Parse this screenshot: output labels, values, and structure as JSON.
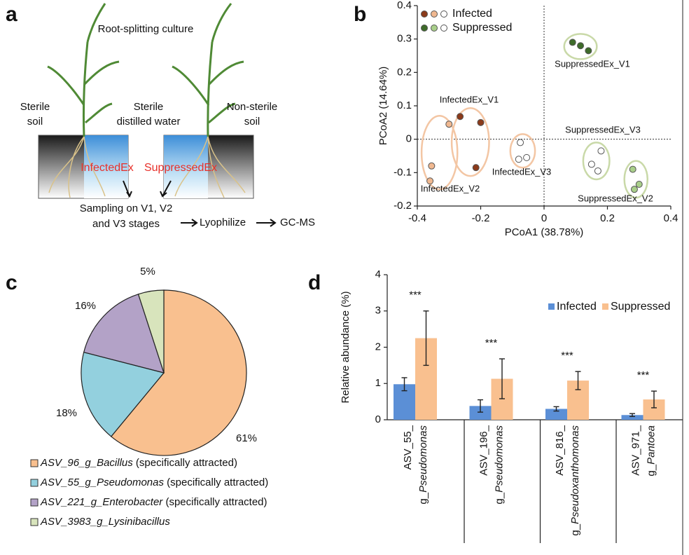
{
  "panel_labels": [
    "a",
    "b",
    "c",
    "d"
  ],
  "diagram": {
    "title": "Root-splitting culture",
    "sterile_soil": [
      "Sterile",
      "soil"
    ],
    "sterile_water": [
      "Sterile",
      "distilled water"
    ],
    "nonsterile_soil": [
      "Non-sterile",
      "soil"
    ],
    "left_pot": "InfectedEx",
    "right_pot": "SuppressedEx",
    "sampling": [
      "Sampling on V1, V2",
      "and V3 stages"
    ],
    "steps": [
      "Lyophilize",
      "GC-MS"
    ]
  },
  "chart_data": [
    {
      "type": "scatter",
      "xlabel": "PCoA1 (38.78%)",
      "ylabel": "PCoA2 (14.64%)",
      "xlim": [
        -0.4,
        0.4
      ],
      "ylim": [
        -0.2,
        0.4
      ],
      "xticks": [
        -0.4,
        -0.2,
        0,
        0.2,
        0.4
      ],
      "yticks": [
        -0.2,
        -0.1,
        0,
        0.1,
        0.2,
        0.3,
        0.4
      ],
      "legend": "upper left",
      "series": [
        {
          "name": "Infected",
          "stage_colors": [
            "#8b3a1a",
            "#f0b890",
            "#ffffff"
          ],
          "ellipse_color": "#f3c6a4",
          "groups": [
            {
              "label": "InfectedEx_V1",
              "x": [
                -0.265,
                -0.2,
                -0.215
              ],
              "y": [
                0.068,
                0.05,
                -0.085
              ]
            },
            {
              "label": "InfectedEx_V2",
              "x": [
                -0.3,
                -0.355,
                -0.36
              ],
              "y": [
                0.045,
                -0.08,
                -0.125
              ]
            },
            {
              "label": "InfectedEx_V3",
              "x": [
                -0.075,
                -0.08,
                -0.055
              ],
              "y": [
                -0.01,
                -0.06,
                -0.055
              ]
            }
          ]
        },
        {
          "name": "Suppressed",
          "stage_colors": [
            "#3e6b2a",
            "#a9cf8a",
            "#ffffff"
          ],
          "ellipse_color": "#c9d9a8",
          "groups": [
            {
              "label": "SuppressedEx_V1",
              "x": [
                0.09,
                0.115,
                0.14
              ],
              "y": [
                0.29,
                0.28,
                0.265
              ]
            },
            {
              "label": "SuppressedEx_V2",
              "x": [
                0.28,
                0.3,
                0.285
              ],
              "y": [
                -0.09,
                -0.135,
                -0.15
              ]
            },
            {
              "label": "SuppressedEx_V3",
              "x": [
                0.18,
                0.15,
                0.17
              ],
              "y": [
                -0.035,
                -0.075,
                -0.095
              ]
            }
          ]
        }
      ]
    },
    {
      "type": "pie",
      "categories": [
        "ASV_96_g_Bacillus (specifically attracted)",
        "ASV_55_g_Pseudomonas (specifically attracted)",
        "ASV_221_g_Enterobacter (specifically attracted)",
        "ASV_3983_g_Lysinibacillus"
      ],
      "values": [
        61,
        18,
        16,
        5
      ],
      "value_labels": [
        "61%",
        "18%",
        "16%",
        "5%"
      ],
      "colors": [
        "#f9c08f",
        "#93d0de",
        "#b3a2c7",
        "#d8e4bc"
      ]
    },
    {
      "type": "bar",
      "ylabel": "Relative abundance (%)",
      "ylim": [
        0,
        4
      ],
      "yticks": [
        0,
        1,
        2,
        3,
        4
      ],
      "legend": "upper right",
      "categories": [
        [
          "ASV_55_",
          "g_Pseudomonas"
        ],
        [
          "ASV_196_",
          "g_Pseudomonas"
        ],
        [
          "ASV_816_",
          "g_Pseudoxanthomonas"
        ],
        [
          "ASV_971_",
          "g_Pantoea"
        ]
      ],
      "series": [
        {
          "name": "Infected",
          "color": "#5b8fd6",
          "values": [
            0.98,
            0.38,
            0.3,
            0.13
          ],
          "errors": [
            0.18,
            0.17,
            0.06,
            0.04
          ]
        },
        {
          "name": "Suppressed",
          "color": "#f9c08f",
          "values": [
            2.25,
            1.13,
            1.08,
            0.56
          ],
          "errors": [
            0.75,
            0.55,
            0.25,
            0.23
          ]
        }
      ],
      "annotations": [
        "***",
        "***",
        "***",
        "***"
      ]
    }
  ]
}
